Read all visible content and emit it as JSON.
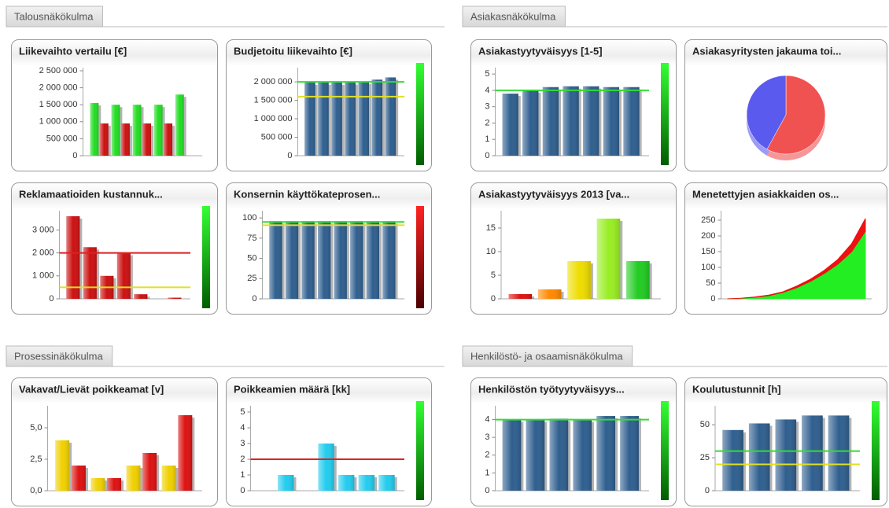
{
  "sections": [
    {
      "title": "Talousnäkökulma",
      "charts": [
        {
          "type": "bar",
          "title": "Liikevaihto vertailu [€]",
          "categories": [
            null,
            null,
            null,
            null,
            null
          ],
          "series": [
            {
              "color": "#22dd22",
              "values": [
                1550000,
                1500000,
                1500000,
                1500000,
                1800000
              ]
            },
            {
              "color": "#cc1111",
              "values": [
                950000,
                950000,
                950000,
                950000,
                null
              ]
            }
          ],
          "ylim": [
            0,
            2500000
          ],
          "yticks": [
            0,
            {
              "value": 500000,
              "label": "500 000"
            },
            {
              "value": 1000000,
              "label": "1 000 000"
            },
            {
              "value": 1500000,
              "label": "1 500 000"
            },
            {
              "value": 2000000,
              "label": "2 000 000"
            },
            {
              "value": 2500000,
              "label": "2 500 000"
            }
          ]
        },
        {
          "type": "bar",
          "title": "Budjetoitu liikevaihto [€]",
          "categories": [
            null,
            null,
            null,
            null,
            null,
            null,
            null
          ],
          "series": [
            {
              "color": "#2f5f8f",
              "values": [
                1980000,
                1980000,
                1980000,
                1990000,
                2000000,
                2060000,
                2120000
              ]
            }
          ],
          "ylim": [
            0,
            2300000
          ],
          "yticks": [
            0,
            {
              "value": 500000,
              "label": "500 000"
            },
            {
              "value": 1000000,
              "label": "1 000 000"
            },
            {
              "value": 1500000,
              "label": "1 500 000"
            },
            {
              "value": 2000000,
              "label": "2 000 000"
            }
          ],
          "reference_lines": [
            {
              "value": 2000000,
              "color": "#33dd33"
            },
            {
              "value": 1600000,
              "color": "#e0e020"
            }
          ],
          "gauge": "green"
        },
        {
          "type": "bar",
          "title": "Reklamaatioiden kustannuk...",
          "categories": [
            null,
            null,
            null,
            null,
            null,
            null,
            null
          ],
          "series": [
            {
              "color": "#cc1111",
              "values": [
                3600,
                2250,
                1000,
                2000,
                200,
                0,
                50
              ]
            }
          ],
          "ylim": [
            0,
            3700
          ],
          "yticks": [
            0,
            {
              "value": 1000,
              "label": "1 000"
            },
            {
              "value": 2000,
              "label": "2 000"
            },
            {
              "value": 3000,
              "label": "3 000"
            }
          ],
          "reference_lines": [
            {
              "value": 2000,
              "color": "#dd2222"
            },
            {
              "value": 500,
              "color": "#e0e020"
            }
          ],
          "gauge": "green"
        },
        {
          "type": "bar",
          "title": "Konsernin käyttökateprosen...",
          "categories": [
            null,
            null,
            null,
            null,
            null,
            null,
            null,
            null
          ],
          "series": [
            {
              "color": "#2f5f8f",
              "values": [
                96,
                96,
                96,
                96,
                96,
                96,
                96,
                96
              ]
            }
          ],
          "ylim": [
            0,
            105
          ],
          "yticks": [
            0,
            25,
            50,
            75,
            100
          ],
          "reference_lines": [
            {
              "value": 95,
              "color": "#33dd33"
            },
            {
              "value": 91,
              "color": "#e0e020"
            }
          ],
          "gauge": "red"
        }
      ]
    },
    {
      "title": "Asiakasnäkökulma",
      "charts": [
        {
          "type": "bar",
          "title": "Asiakastyytyväisyys [1-5]",
          "categories": [
            null,
            null,
            null,
            null,
            null,
            null,
            null
          ],
          "series": [
            {
              "color": "#2f5f8f",
              "values": [
                3.8,
                4.0,
                4.2,
                4.25,
                4.25,
                4.2,
                4.2
              ]
            }
          ],
          "ylim": [
            0,
            5.2
          ],
          "yticks": [
            0,
            1,
            2,
            3,
            4,
            5
          ],
          "reference_lines": [
            {
              "value": 4.0,
              "color": "#33dd33"
            }
          ],
          "gauge": "green"
        },
        {
          "type": "pie",
          "title": "Asiakasyritysten jakauma toi...",
          "values": [
            58,
            42
          ],
          "colors": [
            "#f05252",
            "#5a5aee"
          ]
        },
        {
          "type": "bar",
          "title": "Asiakastyytyväisyys 2013 [va...",
          "categories": [
            null,
            null,
            null,
            null,
            null
          ],
          "series": [
            {
              "colors": [
                "#dd1111",
                "#ff8800",
                "#eedd00",
                "#99ee22",
                "#22cc22"
              ],
              "values": [
                1,
                2,
                8,
                17,
                8
              ]
            }
          ],
          "ylim": [
            0,
            18
          ],
          "yticks": [
            0,
            5,
            10,
            15
          ]
        },
        {
          "type": "area",
          "title": "Menetettyjen asiakkaiden os...",
          "stacked": true,
          "categories": [
            null,
            null,
            null,
            null,
            null,
            null,
            null,
            null,
            null,
            null,
            null
          ],
          "series": [
            {
              "color": "#22ee22",
              "values": [
                0,
                2,
                5,
                10,
                20,
                35,
                55,
                80,
                110,
                150,
                215
              ]
            },
            {
              "color": "#ee1111",
              "values": [
                0,
                0,
                1,
                2,
                2,
                5,
                7,
                10,
                15,
                25,
                40
              ]
            }
          ],
          "ylim": [
            0,
            270
          ],
          "yticks": [
            0,
            50,
            100,
            150,
            200,
            250
          ]
        }
      ]
    },
    {
      "title": "Prosessinäkökulma",
      "charts": [
        {
          "type": "bar",
          "title": "Vakavat/Lievät poikkeamat [v]",
          "categories": [
            null,
            null,
            null,
            null
          ],
          "series": [
            {
              "color": "#f0d000",
              "values": [
                4,
                1,
                2,
                2
              ]
            },
            {
              "color": "#dd1111",
              "values": [
                2,
                1,
                3,
                6
              ]
            }
          ],
          "ylim": [
            0,
            6.5
          ],
          "yticks": [
            {
              "value": 0,
              "label": "0,0"
            },
            {
              "value": 2.5,
              "label": "2,5"
            },
            {
              "value": 5,
              "label": "5,0"
            }
          ]
        },
        {
          "type": "bar",
          "title": "Poikkeamien määrä [kk]",
          "categories": [
            null,
            null,
            null,
            null,
            null,
            null,
            null
          ],
          "series": [
            {
              "color": "#22ccee",
              "values": [
                0,
                1,
                0,
                3,
                1,
                1,
                1
              ]
            }
          ],
          "ylim": [
            0,
            5.2
          ],
          "yticks": [
            0,
            1,
            2,
            3,
            4,
            5
          ],
          "reference_lines": [
            {
              "value": 2,
              "color": "#dd2222"
            }
          ],
          "gauge": "green"
        }
      ]
    },
    {
      "title": "Henkilöstö- ja osaamisnäkökulma",
      "charts": [
        {
          "type": "bar",
          "title": "Henkilöstön työtyytyväisyys...",
          "categories": [
            null,
            null,
            null,
            null,
            null,
            null
          ],
          "series": [
            {
              "color": "#2f5f8f",
              "values": [
                4.0,
                4.0,
                4.05,
                4.0,
                4.2,
                4.2
              ]
            }
          ],
          "ylim": [
            0,
            4.6
          ],
          "yticks": [
            0,
            1,
            2,
            3,
            4
          ],
          "reference_lines": [
            {
              "value": 4,
              "color": "#33dd33"
            }
          ],
          "gauge": "green"
        },
        {
          "type": "bar",
          "title": "Koulutustunnit [h]",
          "categories": [
            null,
            null,
            null,
            null,
            null
          ],
          "series": [
            {
              "color": "#2f5f8f",
              "values": [
                46,
                51,
                54,
                57,
                57
              ]
            }
          ],
          "ylim": [
            0,
            62
          ],
          "yticks": [
            0,
            25,
            50
          ],
          "reference_lines": [
            {
              "value": 30,
              "color": "#33dd33"
            },
            {
              "value": 20,
              "color": "#e0e020"
            }
          ],
          "gauge": "green"
        }
      ]
    }
  ]
}
